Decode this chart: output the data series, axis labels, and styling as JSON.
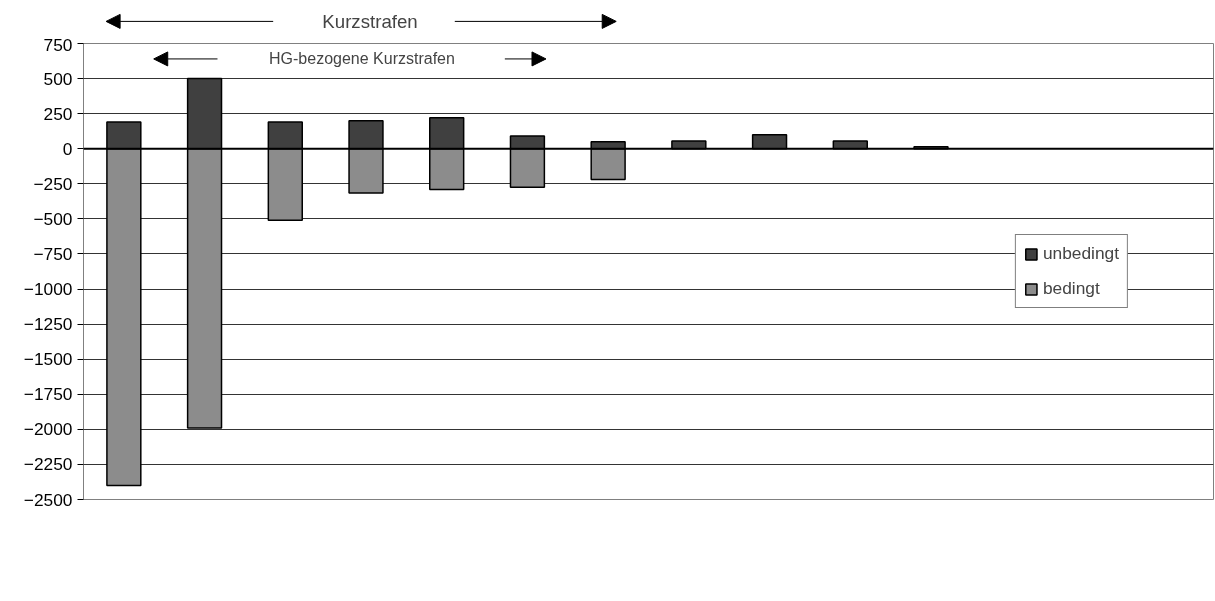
{
  "chart_data": {
    "type": "bar",
    "stacked": true,
    "categories": [
      null,
      null,
      null,
      null,
      null,
      null,
      null,
      null,
      null,
      null,
      null,
      null,
      null,
      null
    ],
    "series": [
      {
        "name": "unbedingt",
        "color": "#404040",
        "values": [
          190,
          500,
          190,
          200,
          220,
          90,
          50,
          55,
          100,
          55,
          15,
          null,
          null,
          null
        ]
      },
      {
        "name": "bedingt",
        "color": "#8c8c8c",
        "values": [
          -2400,
          -1990,
          -510,
          -315,
          -290,
          -275,
          -220,
          null,
          null,
          null,
          null,
          null,
          null,
          null
        ]
      }
    ],
    "ylim": [
      -2500,
      750
    ],
    "yticks": [
      -2500,
      -2250,
      -2000,
      -1750,
      -1500,
      -1250,
      -1000,
      -750,
      -500,
      -250,
      0,
      250,
      500,
      750
    ],
    "grid": "y",
    "legend": "right",
    "tick_labels": "y",
    "annotations": [
      "Kurzstrafen",
      "HG-bezogene Kurzstrafen"
    ]
  }
}
